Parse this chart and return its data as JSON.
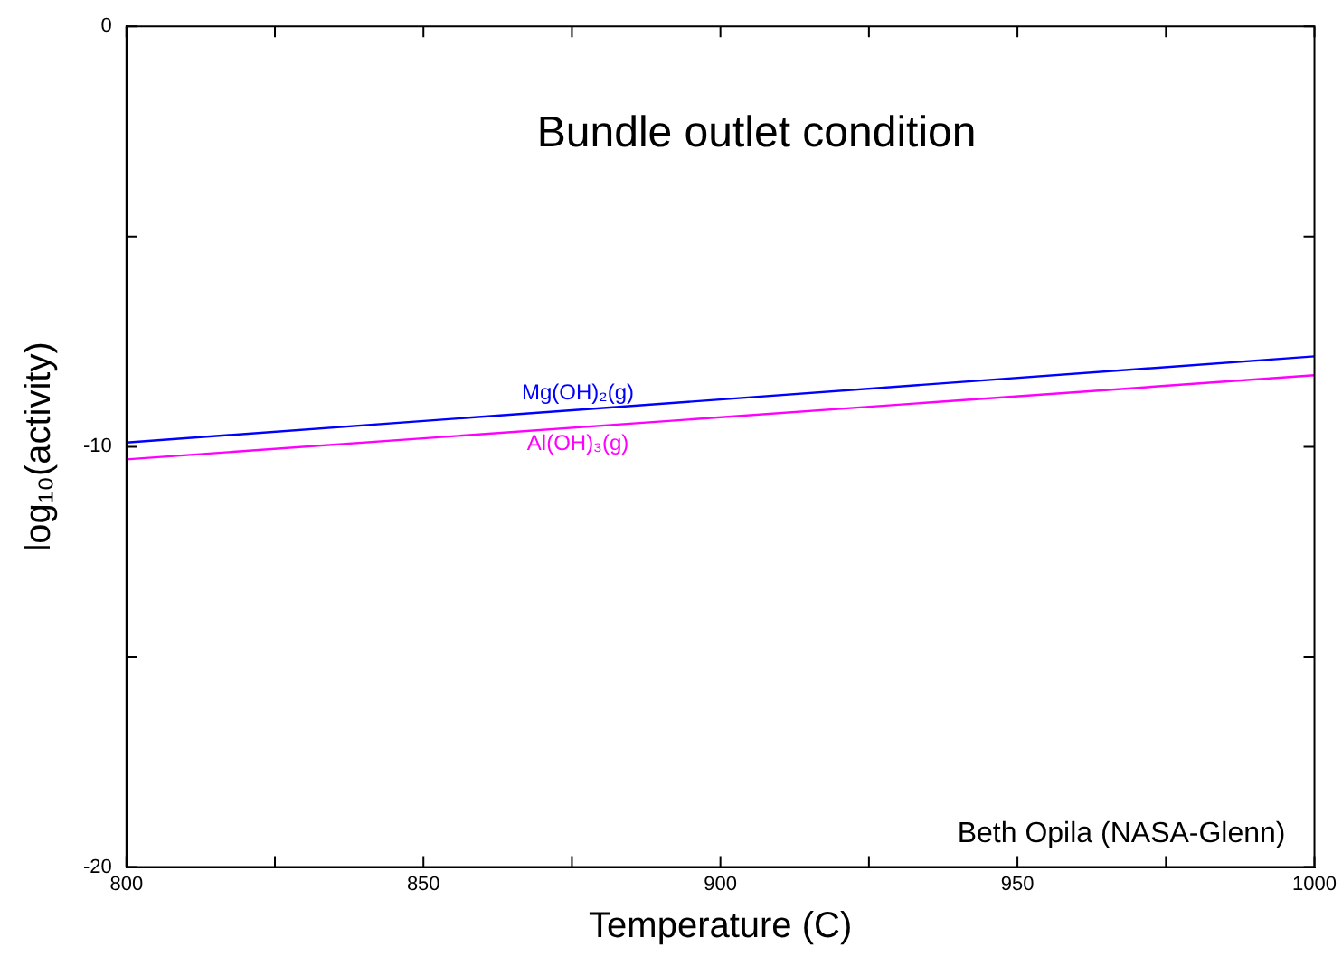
{
  "chart_data": {
    "type": "line",
    "title": "Bundle outlet condition",
    "xlabel": "Temperature (C)",
    "ylabel": "log₁₀(activity)",
    "x": [
      800,
      1000
    ],
    "series": [
      {
        "name": "Mg(OH)₂(g)",
        "color": "#0000ff",
        "values": [
          -9.9,
          -7.85
        ]
      },
      {
        "name": "Al(OH)₃(g)",
        "color": "#ff00ff",
        "values": [
          -10.3,
          -8.3
        ]
      }
    ],
    "xlim": [
      800,
      1000
    ],
    "xticks": [
      800,
      {
        "value": 825,
        "label": null
      },
      850,
      {
        "value": 875,
        "label": null
      },
      900,
      {
        "value": 925,
        "label": null
      },
      950,
      {
        "value": 975,
        "label": null
      },
      1000
    ],
    "ylim": [
      -20,
      0
    ],
    "yticks": [
      -20,
      {
        "value": -15,
        "label": null
      },
      -10,
      {
        "value": -5,
        "label": null
      },
      0
    ],
    "annotations": [
      "Beth Opila (NASA-Glenn)"
    ],
    "grid": false,
    "legend": false,
    "marker": "none",
    "line_style": "solid"
  }
}
